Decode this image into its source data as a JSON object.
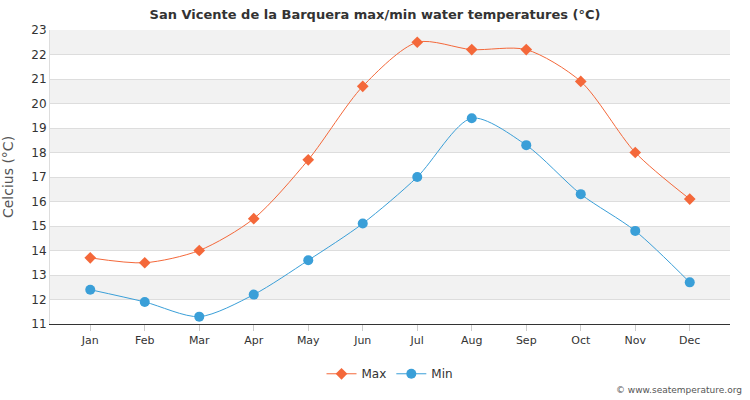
{
  "chart_data": {
    "type": "line",
    "title": "San Vicente de la Barquera max/min water temperatures (°C)",
    "y_label": "Celcius (°C)",
    "categories": [
      "Jan",
      "Feb",
      "Mar",
      "Apr",
      "May",
      "Jun",
      "Jul",
      "Aug",
      "Sep",
      "Oct",
      "Nov",
      "Dec"
    ],
    "series": [
      {
        "name": "Max",
        "color": "#f4683a",
        "marker": "diamond",
        "values": [
          13.7,
          13.5,
          14.0,
          15.3,
          17.7,
          20.7,
          22.5,
          22.2,
          22.2,
          20.9,
          18.0,
          16.1
        ]
      },
      {
        "name": "Min",
        "color": "#3a9fd8",
        "marker": "circle",
        "values": [
          12.4,
          11.9,
          11.3,
          12.2,
          13.6,
          15.1,
          17.0,
          19.4,
          18.3,
          16.3,
          14.8,
          12.7
        ]
      }
    ],
    "ylim": [
      11,
      23
    ],
    "yticks": [
      11,
      12,
      13,
      14,
      15,
      16,
      17,
      18,
      19,
      20,
      21,
      22,
      23
    ],
    "grid": true,
    "legend": "bottom",
    "annotations": [
      {
        "text": "© www.seatemperature.org"
      }
    ]
  }
}
